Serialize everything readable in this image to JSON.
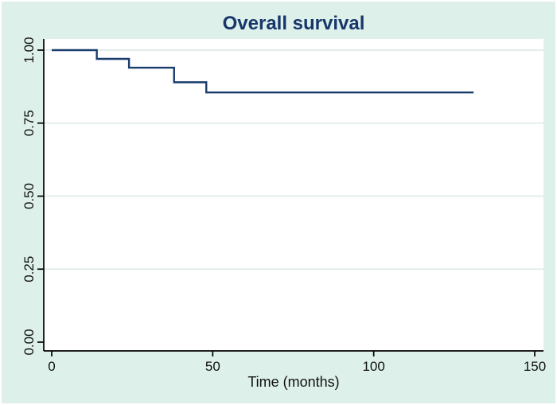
{
  "figure": {
    "background_color": "#ddf0e9",
    "plot_background_color": "#ffffff"
  },
  "chart_data": {
    "type": "line",
    "subtype": "kaplan-meier-step",
    "title": "Overall survival",
    "xlabel": "Time (months)",
    "ylabel": "",
    "xlim": [
      0,
      150
    ],
    "ylim": [
      0,
      1
    ],
    "xticks": [
      0,
      50,
      100,
      150
    ],
    "xtick_labels": [
      "0",
      "50",
      "100",
      "150"
    ],
    "yticks": [
      0,
      0.25,
      0.5,
      0.75,
      1
    ],
    "ytick_labels": [
      "0.00",
      "0.25",
      "0.50",
      "0.75",
      "1.00"
    ],
    "grid": "horizontal",
    "legend": "none",
    "series": [
      {
        "name": "Overall survival",
        "color": "#1b3d6d",
        "points": [
          [
            0,
            1.0
          ],
          [
            14,
            1.0
          ],
          [
            14,
            0.97
          ],
          [
            24,
            0.97
          ],
          [
            24,
            0.94
          ],
          [
            38,
            0.94
          ],
          [
            38,
            0.89
          ],
          [
            48,
            0.89
          ],
          [
            48,
            0.855
          ],
          [
            131,
            0.855
          ]
        ]
      }
    ],
    "colors": {
      "title": "#17366b",
      "curve": "#1b3d6d",
      "gridline": "#e2eeeb",
      "axis": "#000000",
      "tick_text": "#111111"
    }
  }
}
